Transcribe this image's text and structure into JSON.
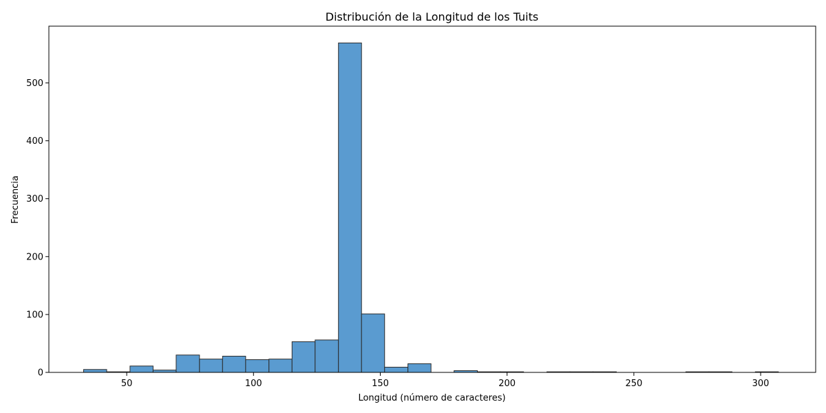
{
  "chart_data": {
    "type": "bar",
    "title": "Distribución de la Longitud de los Tuits",
    "xlabel": "Longitud (número de caracteres)",
    "ylabel": "Frecuencia",
    "xlim": [
      19.3,
      321.7
    ],
    "ylim": [
      0,
      598
    ],
    "x_ticks": [
      50,
      100,
      150,
      200,
      250,
      300
    ],
    "y_ticks": [
      0,
      100,
      200,
      300,
      400,
      500
    ],
    "grid": false,
    "bar_color": "#5a9bd0",
    "bar_edge_color": "#2b2b2b",
    "bins": [
      {
        "x0": 33.0,
        "x1": 42.1,
        "count": 5
      },
      {
        "x0": 42.1,
        "x1": 51.3,
        "count": 1
      },
      {
        "x0": 51.3,
        "x1": 60.4,
        "count": 11
      },
      {
        "x0": 60.4,
        "x1": 69.5,
        "count": 4
      },
      {
        "x0": 69.5,
        "x1": 78.7,
        "count": 30
      },
      {
        "x0": 78.7,
        "x1": 87.8,
        "count": 23
      },
      {
        "x0": 87.8,
        "x1": 96.9,
        "count": 28
      },
      {
        "x0": 96.9,
        "x1": 106.1,
        "count": 22
      },
      {
        "x0": 106.1,
        "x1": 115.2,
        "count": 23
      },
      {
        "x0": 115.2,
        "x1": 124.3,
        "count": 53
      },
      {
        "x0": 124.3,
        "x1": 133.5,
        "count": 56
      },
      {
        "x0": 133.5,
        "x1": 142.6,
        "count": 569
      },
      {
        "x0": 142.6,
        "x1": 151.7,
        "count": 101
      },
      {
        "x0": 151.7,
        "x1": 160.9,
        "count": 9
      },
      {
        "x0": 160.9,
        "x1": 170.0,
        "count": 15
      },
      {
        "x0": 170.0,
        "x1": 179.1,
        "count": 0
      },
      {
        "x0": 179.1,
        "x1": 188.3,
        "count": 3
      },
      {
        "x0": 188.3,
        "x1": 197.4,
        "count": 1
      },
      {
        "x0": 197.4,
        "x1": 206.5,
        "count": 1
      },
      {
        "x0": 206.5,
        "x1": 215.7,
        "count": 0
      },
      {
        "x0": 215.7,
        "x1": 224.8,
        "count": 1
      },
      {
        "x0": 224.8,
        "x1": 233.9,
        "count": 1
      },
      {
        "x0": 233.9,
        "x1": 243.1,
        "count": 1
      },
      {
        "x0": 243.1,
        "x1": 252.2,
        "count": 0
      },
      {
        "x0": 252.2,
        "x1": 261.3,
        "count": 0
      },
      {
        "x0": 261.3,
        "x1": 270.5,
        "count": 0
      },
      {
        "x0": 270.5,
        "x1": 279.6,
        "count": 1
      },
      {
        "x0": 279.6,
        "x1": 288.7,
        "count": 1
      },
      {
        "x0": 288.7,
        "x1": 297.9,
        "count": 0
      },
      {
        "x0": 297.9,
        "x1": 307.0,
        "count": 1
      }
    ]
  }
}
